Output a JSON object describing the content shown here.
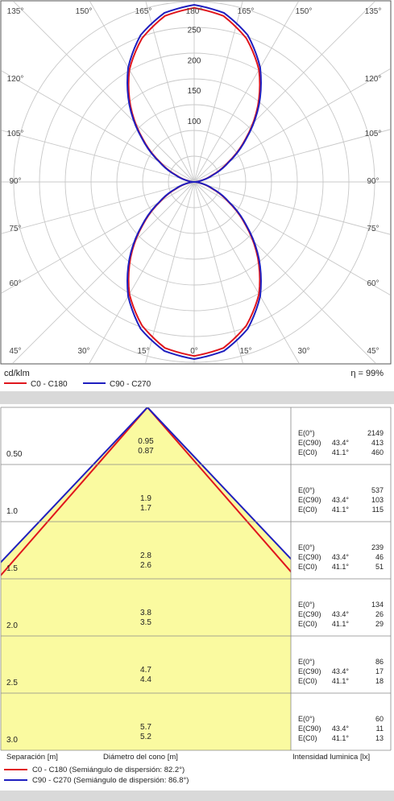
{
  "chart_data": [
    {
      "type": "polar",
      "angle_labels_top": [
        "135°",
        "150°",
        "165°",
        "180°",
        "165°",
        "150°",
        "135°"
      ],
      "angle_labels_bottom": [
        "45°",
        "30°",
        "15°",
        "0°",
        "15°",
        "30°",
        "45°"
      ],
      "angle_labels_left": [
        "120°",
        "105°",
        "90°",
        "75°",
        "60°"
      ],
      "angle_labels_right": [
        "120°",
        "105°",
        "90°",
        "75°",
        "60°"
      ],
      "radial_ticks": [
        "100",
        "150",
        "200",
        "250"
      ],
      "radial_values": [
        100,
        150,
        200,
        250
      ],
      "rmax": 290,
      "unit_label": "cd/klm",
      "efficiency": "η = 99%",
      "series": [
        {
          "name": "C0 - C180",
          "color": "#e0161d",
          "angles": [
            0,
            10,
            20,
            30,
            40,
            50,
            60,
            70,
            80,
            90
          ],
          "values": [
            285,
            276,
            250,
            212,
            162,
            110,
            64,
            30,
            9,
            0
          ]
        },
        {
          "name": "C90 - C270",
          "color": "#1f1fbf",
          "angles": [
            0,
            10,
            20,
            30,
            40,
            50,
            60,
            70,
            80,
            90
          ],
          "values": [
            290,
            281,
            256,
            216,
            165,
            112,
            66,
            32,
            10,
            0
          ]
        }
      ]
    },
    {
      "type": "table",
      "columns": {
        "separation": "Separación [m]",
        "cone": "Diámetro del cono [m]",
        "illuminance": "Intensidad luminica [lx]"
      },
      "rows": [
        {
          "separation": "0.50",
          "cone_a": "0.95",
          "cone_b": "0.87",
          "e0": "2149",
          "ec90_angle": "43.4°",
          "ec90": "413",
          "ec0_angle": "41.1°",
          "ec0": "460"
        },
        {
          "separation": "1.0",
          "cone_a": "1.9",
          "cone_b": "1.7",
          "e0": "537",
          "ec90_angle": "43.4°",
          "ec90": "103",
          "ec0_angle": "41.1°",
          "ec0": "115"
        },
        {
          "separation": "1.5",
          "cone_a": "2.8",
          "cone_b": "2.6",
          "e0": "239",
          "ec90_angle": "43.4°",
          "ec90": "46",
          "ec0_angle": "41.1°",
          "ec0": "51"
        },
        {
          "separation": "2.0",
          "cone_a": "3.8",
          "cone_b": "3.5",
          "e0": "134",
          "ec90_angle": "43.4°",
          "ec90": "26",
          "ec0_angle": "41.1°",
          "ec0": "29"
        },
        {
          "separation": "2.5",
          "cone_a": "4.7",
          "cone_b": "4.4",
          "e0": "86",
          "ec90_angle": "43.4°",
          "ec90": "17",
          "ec0_angle": "41.1°",
          "ec0": "18"
        },
        {
          "separation": "3.0",
          "cone_a": "5.7",
          "cone_b": "5.2",
          "e0": "60",
          "ec90_angle": "43.4°",
          "ec90": "11",
          "ec0_angle": "41.1°",
          "ec0": "13"
        }
      ],
      "e_labels": {
        "e0": "E(0°)",
        "ec90": "E(C90)",
        "ec0": "E(C0)"
      },
      "half_angles": [
        41.1,
        43.4
      ],
      "legend": [
        {
          "label": "C0 - C180 (Semiángulo de dispersión: 82.2°)",
          "color": "#e0161d"
        },
        {
          "label": "C90 - C270 (Semiángulo de dispersión: 86.8°)",
          "color": "#1f1fbf"
        }
      ]
    }
  ],
  "colors": {
    "cone_fill": "#fafaa0",
    "grid": "#c8c8c8",
    "divider": "#d9d9d9"
  }
}
